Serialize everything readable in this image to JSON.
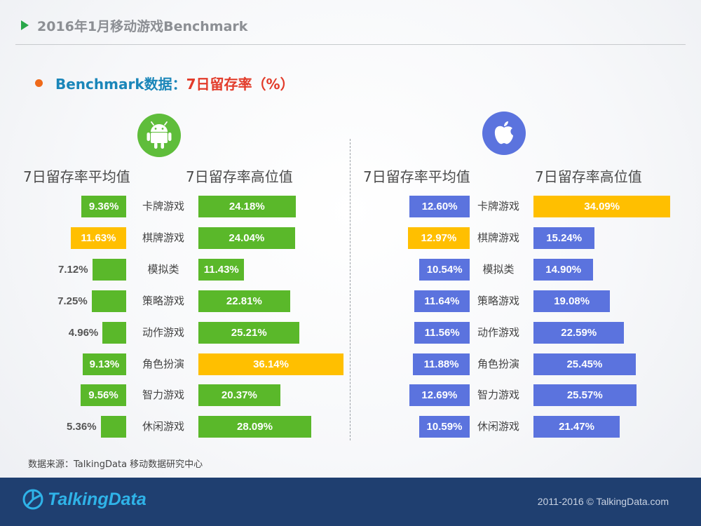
{
  "header": {
    "title": "2016年1月移动游戏Benchmark"
  },
  "section": {
    "lead": "Benchmark数据：",
    "metric": "7日留存率（%）"
  },
  "colors": {
    "green": "#5ab82a",
    "blue": "#5b73de",
    "highlight": "#ffbf00"
  },
  "chart_data": [
    {
      "type": "bar",
      "platform": "Android",
      "icon": "android-icon",
      "categories": [
        "卡牌游戏",
        "棋牌游戏",
        "模拟类",
        "策略游戏",
        "动作游戏",
        "角色扮演",
        "智力游戏",
        "休闲游戏"
      ],
      "series": [
        {
          "name": "7日留存率平均值",
          "values": [
            9.36,
            11.63,
            7.12,
            7.25,
            4.96,
            9.13,
            9.56,
            5.36
          ],
          "labels": [
            "9.36%",
            "11.63%",
            "7.12%",
            "7.25%",
            "4.96%",
            "9.13%",
            "9.56%",
            "5.36%"
          ],
          "highlight_index": 1
        },
        {
          "name": "7日留存率高位值",
          "values": [
            24.18,
            24.04,
            11.43,
            22.81,
            25.21,
            36.14,
            20.37,
            28.09
          ],
          "labels": [
            "24.18%",
            "24.04%",
            "11.43%",
            "22.81%",
            "25.21%",
            "36.14%",
            "20.37%",
            "28.09%"
          ],
          "highlight_index": 5
        }
      ]
    },
    {
      "type": "bar",
      "platform": "iOS",
      "icon": "apple-icon",
      "categories": [
        "卡牌游戏",
        "棋牌游戏",
        "模拟类",
        "策略游戏",
        "动作游戏",
        "角色扮演",
        "智力游戏",
        "休闲游戏"
      ],
      "series": [
        {
          "name": "7日留存率平均值",
          "values": [
            12.6,
            12.97,
            10.54,
            11.64,
            11.56,
            11.88,
            12.69,
            10.59
          ],
          "labels": [
            "12.60%",
            "12.97%",
            "10.54%",
            "11.64%",
            "11.56%",
            "11.88%",
            "12.69%",
            "10.59%"
          ],
          "highlight_index": 1
        },
        {
          "name": "7日留存率高位值",
          "values": [
            34.09,
            15.24,
            14.9,
            19.08,
            22.59,
            25.45,
            25.57,
            21.47
          ],
          "labels": [
            "34.09%",
            "15.24%",
            "14.90%",
            "19.08%",
            "22.59%",
            "25.45%",
            "25.57%",
            "21.47%"
          ],
          "highlight_index": 0
        }
      ]
    }
  ],
  "source": "数据来源：TalkingData 移动数据研究中心",
  "footer": {
    "logo": "TalkingData",
    "copyright": "2011-2016 © TalkingData.com"
  }
}
